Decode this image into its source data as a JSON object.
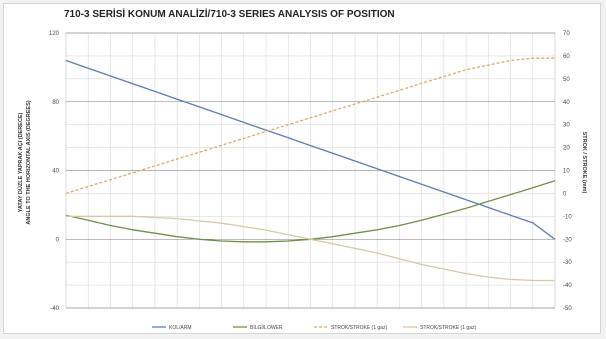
{
  "chart_data": {
    "type": "line",
    "title": "710-3 SERİSİ KONUM ANALİZİ/710-3 SERIES ANALYSIS OF POSITION",
    "ylabel_left": [
      "YATAY DÜZLE YAPRAK AÇI (DERECE)",
      "ANGLE TO THE HORIZONTAL AXIS (DEGREES)"
    ],
    "ylabel_right": "STROK / STROKE (mm)",
    "ylim_left": [
      -40,
      120
    ],
    "yticks_left": [
      "120",
      "80",
      "40",
      "0",
      "-40"
    ],
    "ylim_right": [
      -50,
      70
    ],
    "yticks_right": [
      "70",
      "60",
      "50",
      "40",
      "30",
      "20",
      "10",
      "0",
      "-10",
      "-20",
      "-30",
      "-40",
      "-50"
    ],
    "x": [
      0,
      1,
      2,
      3,
      4,
      5,
      6,
      7,
      8,
      9,
      10,
      11,
      12,
      13,
      14,
      15,
      16,
      17,
      18,
      19,
      20,
      21,
      22
    ],
    "series": [
      {
        "name": "KOL/ARM",
        "axis": "left",
        "color": "#5b7fae",
        "dash": "",
        "values": [
          104,
          99.5,
          95,
          90.5,
          86,
          81.5,
          77,
          72.5,
          68,
          63.5,
          59,
          54.5,
          50,
          45.5,
          41,
          36.5,
          32,
          27.5,
          23,
          18.5,
          14,
          9.5,
          0
        ]
      },
      {
        "name": "BİLGİ/LOWER",
        "axis": "left",
        "color": "#6f8f4c",
        "dash": "",
        "values": [
          14,
          11,
          8,
          5.5,
          3.5,
          1.5,
          0,
          -1,
          -1.5,
          -1.5,
          -1,
          0,
          1.5,
          3.5,
          5.5,
          8,
          11,
          14.5,
          18,
          22,
          26,
          30,
          34
        ]
      },
      {
        "name": "STROK/STROKE (1 gaz)",
        "axis": "right",
        "color": "#e0a96b",
        "dash": "3,2",
        "values": [
          0,
          3,
          6,
          9,
          12,
          15,
          18,
          21,
          24,
          27,
          30,
          33,
          36,
          39,
          42,
          45,
          48,
          51,
          54,
          56,
          58,
          59,
          59
        ]
      },
      {
        "name": "STROK/STROKE (1 gaz)",
        "axis": "right",
        "color": "#d8c7a6",
        "dash": "",
        "values": [
          -10,
          -10,
          -10,
          -10,
          -10.5,
          -11,
          -12,
          -13,
          -14.5,
          -16,
          -18,
          -20,
          -22,
          -24,
          -26,
          -28.5,
          -31,
          -33,
          -35,
          -36.5,
          -37.5,
          -38,
          -38
        ]
      }
    ],
    "grid": true,
    "legend": "bottom"
  },
  "colors": {
    "background": "#ffffff",
    "grid": "#d9d9d9",
    "ref_line": "#7a7a7a"
  }
}
